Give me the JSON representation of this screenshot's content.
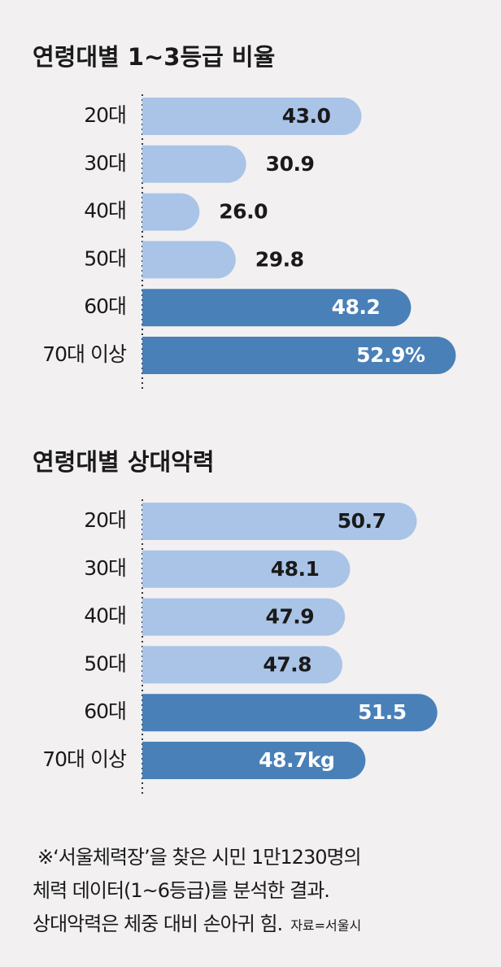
{
  "chart_data": [
    {
      "type": "bar",
      "orientation": "horizontal",
      "title": "연령대별 1~3등급 비율",
      "categories": [
        "20대",
        "30대",
        "40대",
        "50대",
        "60대",
        "70대 이상"
      ],
      "values": [
        43.0,
        30.9,
        26.0,
        29.8,
        48.2,
        52.9
      ],
      "value_labels": [
        "43.0",
        "30.9",
        "26.0",
        "29.8",
        "48.2",
        "52.9%"
      ],
      "colors": [
        "#aac4e8",
        "#aac4e8",
        "#aac4e8",
        "#aac4e8",
        "#4a80b8",
        "#4a80b8"
      ],
      "xlim": [
        20,
        55
      ]
    },
    {
      "type": "bar",
      "orientation": "horizontal",
      "title": "연령대별 상대악력",
      "categories": [
        "20대",
        "30대",
        "40대",
        "50대",
        "60대",
        "70대 이상"
      ],
      "values": [
        50.7,
        48.1,
        47.9,
        47.8,
        51.5,
        48.7
      ],
      "value_labels": [
        "50.7",
        "48.1",
        "47.9",
        "47.8",
        "51.5",
        "48.7kg"
      ],
      "colors": [
        "#aac4e8",
        "#aac4e8",
        "#aac4e8",
        "#aac4e8",
        "#4a80b8",
        "#4a80b8"
      ],
      "xlim": [
        40,
        53
      ]
    }
  ],
  "note": [
    "※‘서울체력장’을 찾은 시민 1만1230명의",
    "체력 데이터(1~6등급)를 분석한 결과.",
    "상대악력은 체중 대비 손아귀 힘."
  ],
  "source": "자료=서울시"
}
